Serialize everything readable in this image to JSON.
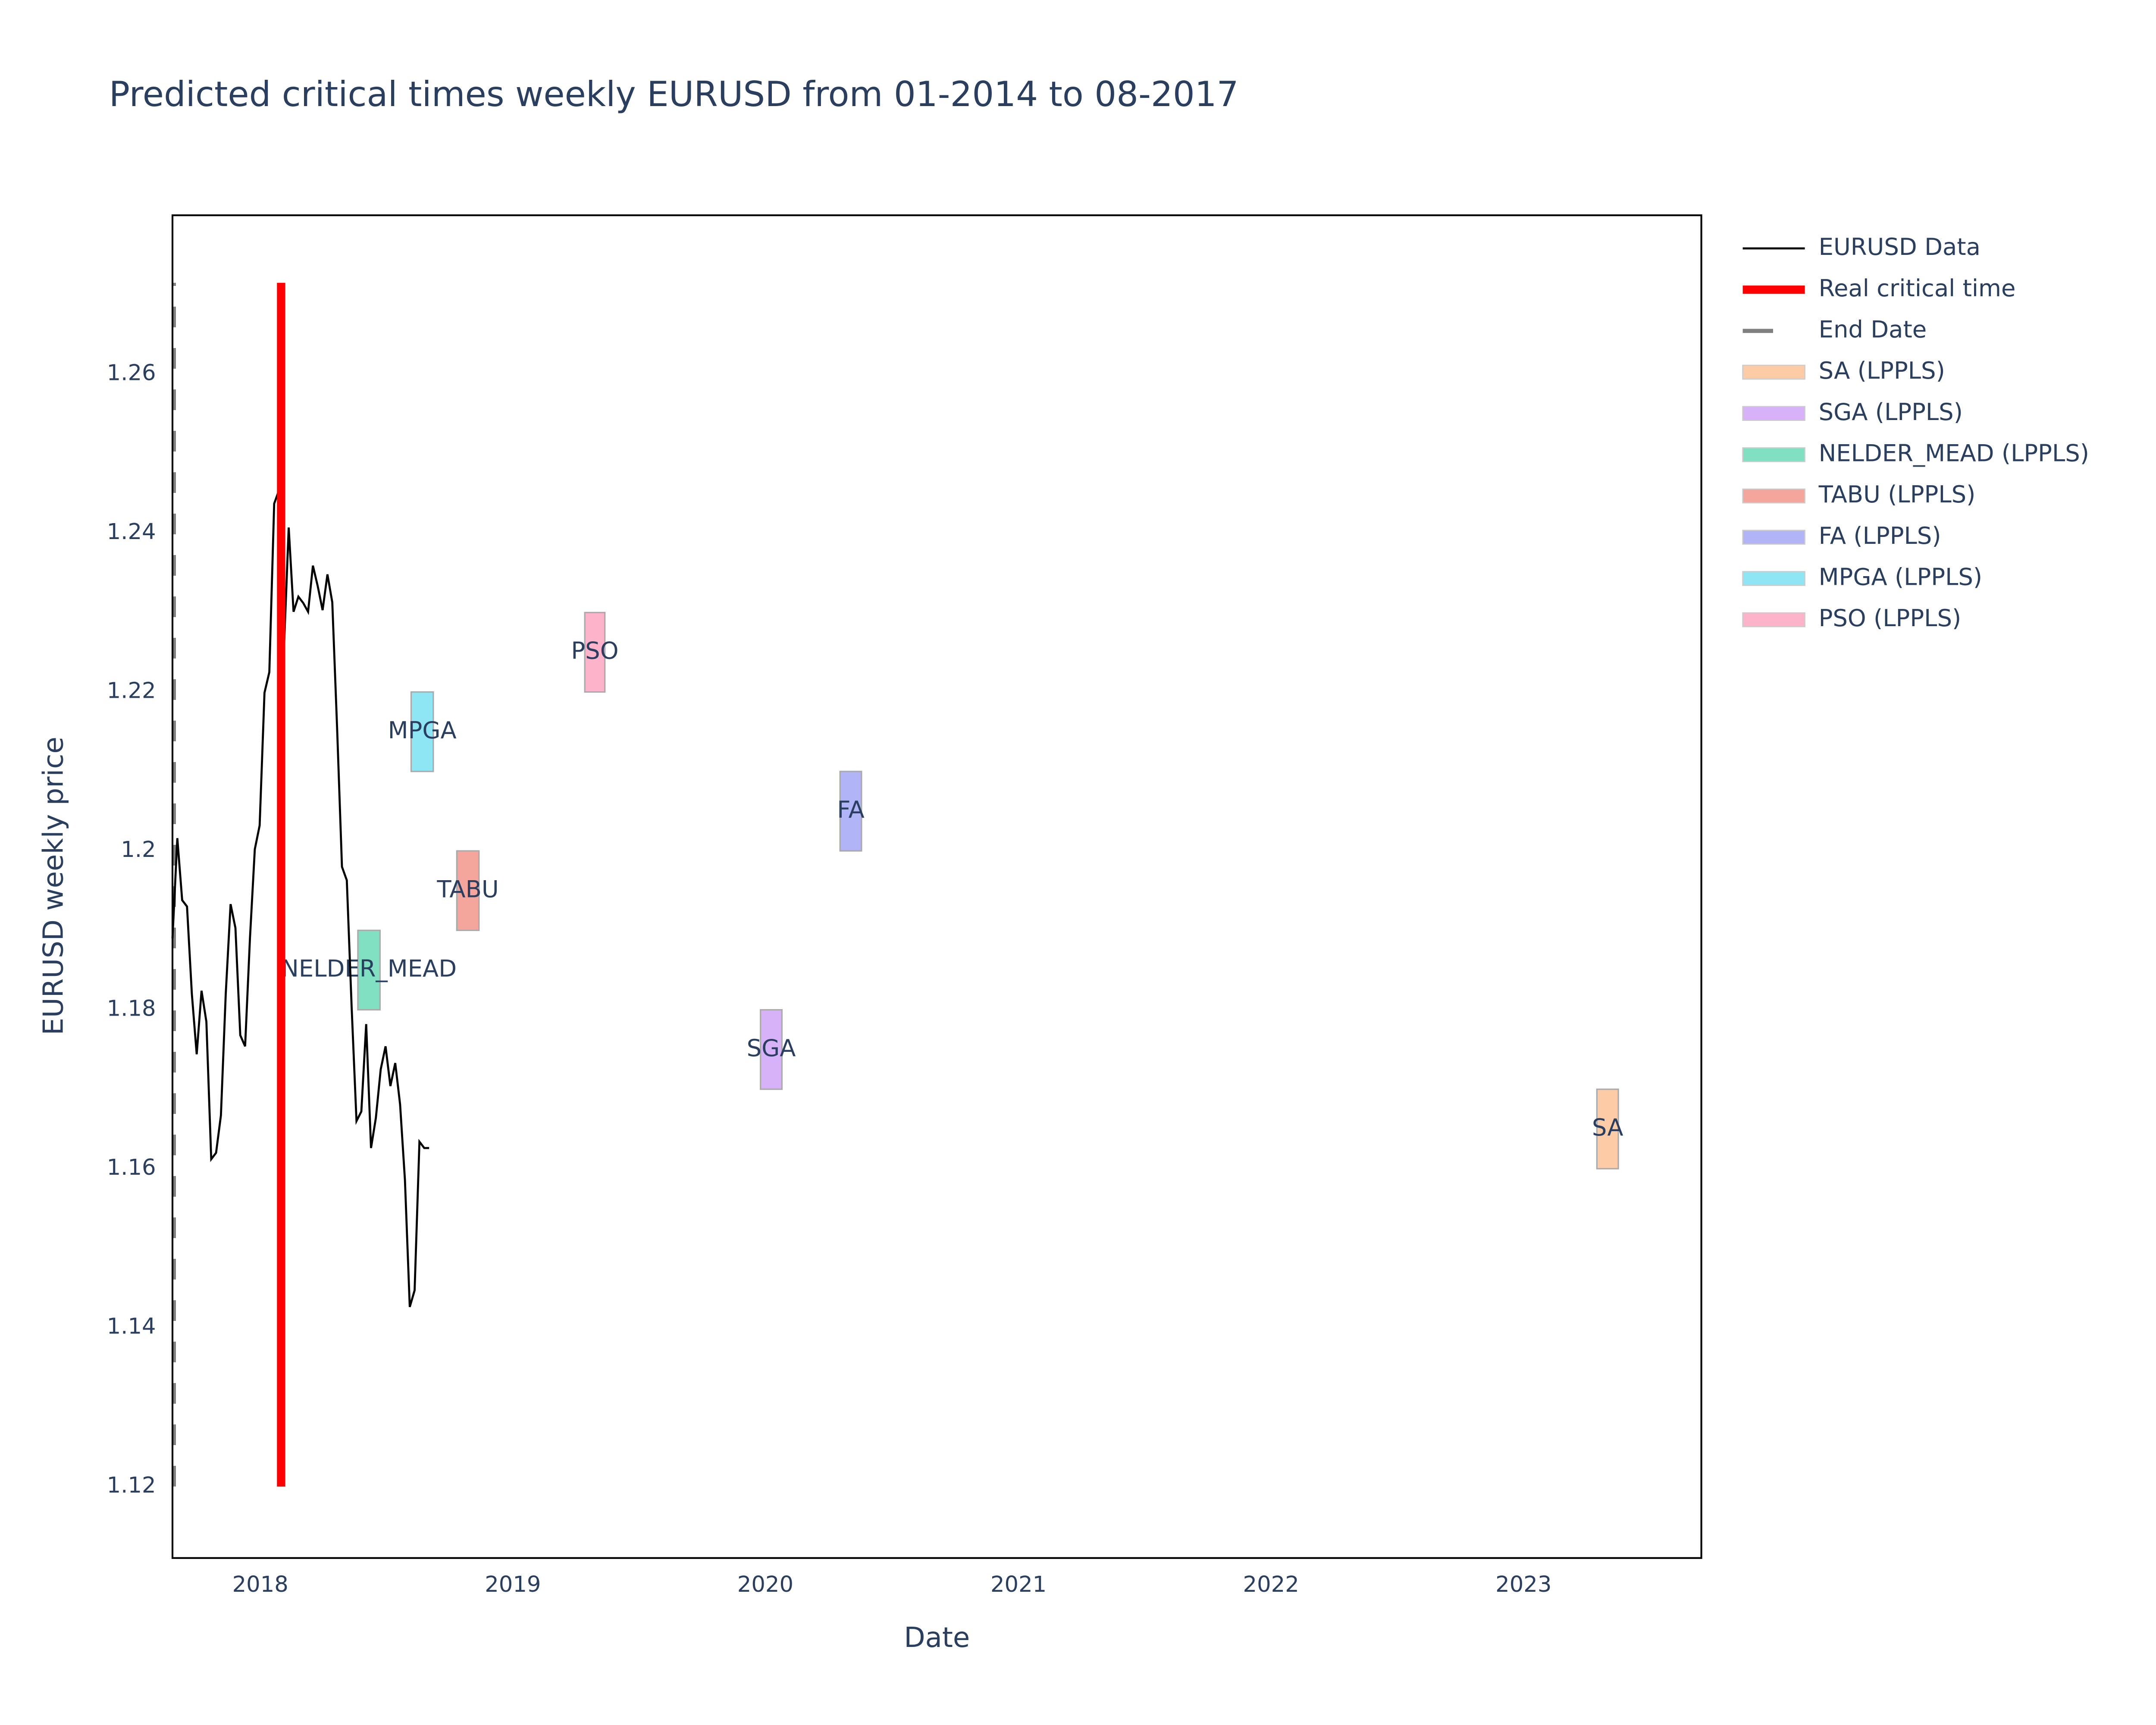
{
  "chart_data": {
    "type": "line",
    "title": "Predicted critical times weekly EURUSD from 01-2014 to 08-2017",
    "x_label": "Date",
    "y_label": "EURUSD weekly price",
    "xlim": [
      "2017-08-27",
      "2023-09-15"
    ],
    "xticks": [
      {
        "value": "2018-01-01",
        "label": "2018"
      },
      {
        "value": "2019-01-01",
        "label": "2019"
      },
      {
        "value": "2020-01-01",
        "label": "2020"
      },
      {
        "value": "2021-01-01",
        "label": "2021"
      },
      {
        "value": "2022-01-01",
        "label": "2022"
      },
      {
        "value": "2023-01-01",
        "label": "2023"
      }
    ],
    "ylim": [
      1.111,
      1.28
    ],
    "yticks": [
      1.12,
      1.14,
      1.16,
      1.18,
      1.2,
      1.22,
      1.24,
      1.26
    ],
    "grid": false,
    "legend_position": "outside-right",
    "x": [
      "2017-08-27",
      "2017-09-03",
      "2017-09-10",
      "2017-09-17",
      "2017-09-24",
      "2017-10-01",
      "2017-10-08",
      "2017-10-15",
      "2017-10-22",
      "2017-10-29",
      "2017-11-05",
      "2017-11-12",
      "2017-11-19",
      "2017-11-26",
      "2017-12-03",
      "2017-12-10",
      "2017-12-17",
      "2017-12-24",
      "2017-12-31",
      "2018-01-07",
      "2018-01-14",
      "2018-01-21",
      "2018-01-28",
      "2018-02-04",
      "2018-02-11",
      "2018-02-18",
      "2018-02-25",
      "2018-03-04",
      "2018-03-11",
      "2018-03-18",
      "2018-03-25",
      "2018-04-01",
      "2018-04-08",
      "2018-04-15",
      "2018-04-22",
      "2018-04-29",
      "2018-05-06",
      "2018-05-13",
      "2018-05-20",
      "2018-05-27",
      "2018-06-03",
      "2018-06-10",
      "2018-06-17",
      "2018-06-24",
      "2018-07-01",
      "2018-07-08",
      "2018-07-15",
      "2018-07-22",
      "2018-07-29",
      "2018-08-05",
      "2018-08-12",
      "2018-08-19",
      "2018-08-26",
      "2018-09-02"
    ],
    "series": [
      {
        "name": "EURUSD Data",
        "color": "#000000",
        "values": [
          1.189,
          1.2016,
          1.1938,
          1.193,
          1.182,
          1.1744,
          1.1824,
          1.1785,
          1.1612,
          1.162,
          1.1667,
          1.182,
          1.1933,
          1.1903,
          1.1768,
          1.1754,
          1.189,
          1.2002,
          1.2032,
          1.2199,
          1.2225,
          1.2437,
          1.2454,
          1.2251,
          1.2407,
          1.2301,
          1.232,
          1.2312,
          1.2301,
          1.2359,
          1.2333,
          1.2303,
          1.2348,
          1.2313,
          1.2154,
          1.198,
          1.1963,
          1.1803,
          1.166,
          1.1672,
          1.1782,
          1.1626,
          1.1664,
          1.1725,
          1.1754,
          1.1704,
          1.1733,
          1.1681,
          1.1586,
          1.1426,
          1.1447,
          1.1634,
          1.1626,
          1.1626
        ]
      }
    ],
    "critical_time": {
      "name": "Real critical time",
      "color": "#ff0000",
      "x": "2018-01-31",
      "y": [
        1.12,
        1.2715
      ]
    },
    "end_date": {
      "name": "End Date",
      "color": "#808080",
      "x": "2017-08-27",
      "y": [
        1.12,
        1.2715
      ]
    },
    "predictions": [
      {
        "name": "SA (LPPLS)",
        "label": "SA",
        "color": "#fdcba5",
        "x": [
          "2023-04-17",
          "2023-05-18"
        ],
        "y": [
          1.16,
          1.17
        ]
      },
      {
        "name": "SGA (LPPLS)",
        "label": "SGA",
        "color": "#d8b2f8",
        "x": [
          "2019-12-25",
          "2020-01-25"
        ],
        "y": [
          1.17,
          1.18
        ]
      },
      {
        "name": "NELDER_MEAD (LPPLS)",
        "label": "NELDER_MEAD",
        "color": "#80e0c1",
        "x": [
          "2018-05-22",
          "2018-06-23"
        ],
        "y": [
          1.18,
          1.19
        ]
      },
      {
        "name": "TABU (LPPLS)",
        "label": "TABU",
        "color": "#f5a69c",
        "x": [
          "2018-10-12",
          "2018-11-13"
        ],
        "y": [
          1.19,
          1.2
        ]
      },
      {
        "name": "FA (LPPLS)",
        "label": "FA",
        "color": "#b1b4f6",
        "x": [
          "2020-04-18",
          "2020-05-19"
        ],
        "y": [
          1.2,
          1.21
        ]
      },
      {
        "name": "MPGA (LPPLS)",
        "label": "MPGA",
        "color": "#8ee6f5",
        "x": [
          "2018-08-07",
          "2018-09-08"
        ],
        "y": [
          1.21,
          1.22
        ]
      },
      {
        "name": "PSO (LPPLS)",
        "label": "PSO",
        "color": "#fdb3c9",
        "x": [
          "2019-04-15",
          "2019-05-14"
        ],
        "y": [
          1.22,
          1.23
        ]
      }
    ]
  }
}
